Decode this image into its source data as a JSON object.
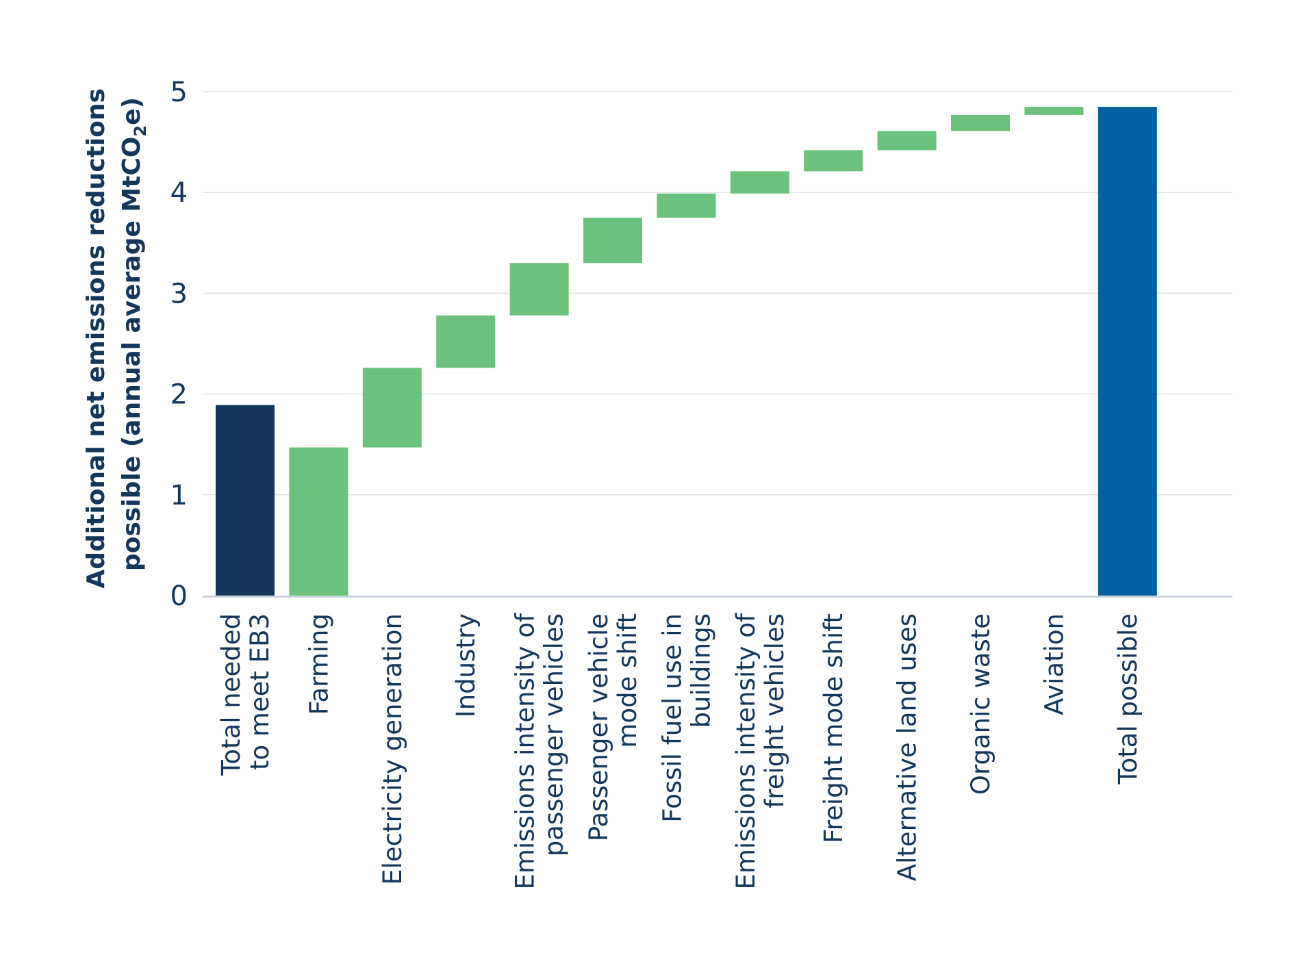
{
  "chart_data": {
    "type": "waterfall",
    "ylabel_line1": "Additional net emissions reductions",
    "ylabel_line2_prefix": "possible (annual average MtCO",
    "ylabel_line2_sub": "2",
    "ylabel_line2_suffix": "e)",
    "ylim": [
      0,
      5
    ],
    "yticks": [
      0,
      1,
      2,
      3,
      4,
      5
    ],
    "grid": true,
    "categories": [
      [
        "Total needed",
        "to meet EB3"
      ],
      [
        "Farming"
      ],
      [
        "Electricity generation"
      ],
      [
        "Industry"
      ],
      [
        "Emissions intensity of",
        "passenger vehicles"
      ],
      [
        "Passenger vehicle",
        "mode shift"
      ],
      [
        "Fossil fuel use in",
        "buildings"
      ],
      [
        "Emissions intensity of",
        "freight vehicles"
      ],
      [
        "Freight mode shift"
      ],
      [
        "Alternative land uses"
      ],
      [
        "Organic waste"
      ],
      [
        "Aviation"
      ],
      [
        "Total possible"
      ]
    ],
    "bars": [
      {
        "kind": "total",
        "start": 0,
        "end": 1.89
      },
      {
        "kind": "step",
        "start": 0,
        "end": 1.47
      },
      {
        "kind": "step",
        "start": 1.47,
        "end": 2.26
      },
      {
        "kind": "step",
        "start": 2.26,
        "end": 2.78
      },
      {
        "kind": "step",
        "start": 2.78,
        "end": 3.3
      },
      {
        "kind": "step",
        "start": 3.3,
        "end": 3.75
      },
      {
        "kind": "step",
        "start": 3.75,
        "end": 3.99
      },
      {
        "kind": "step",
        "start": 3.99,
        "end": 4.21
      },
      {
        "kind": "step",
        "start": 4.21,
        "end": 4.42
      },
      {
        "kind": "step",
        "start": 4.42,
        "end": 4.61
      },
      {
        "kind": "step",
        "start": 4.61,
        "end": 4.77
      },
      {
        "kind": "step",
        "start": 4.77,
        "end": 4.85
      },
      {
        "kind": "total_final",
        "start": 0,
        "end": 4.85
      }
    ],
    "colors": {
      "total": "#14365a",
      "step": "#6bc27c",
      "total_final": "#00609f",
      "grid": "#dde3e8",
      "axis": "#c9d2da",
      "text": "#14365a"
    }
  }
}
